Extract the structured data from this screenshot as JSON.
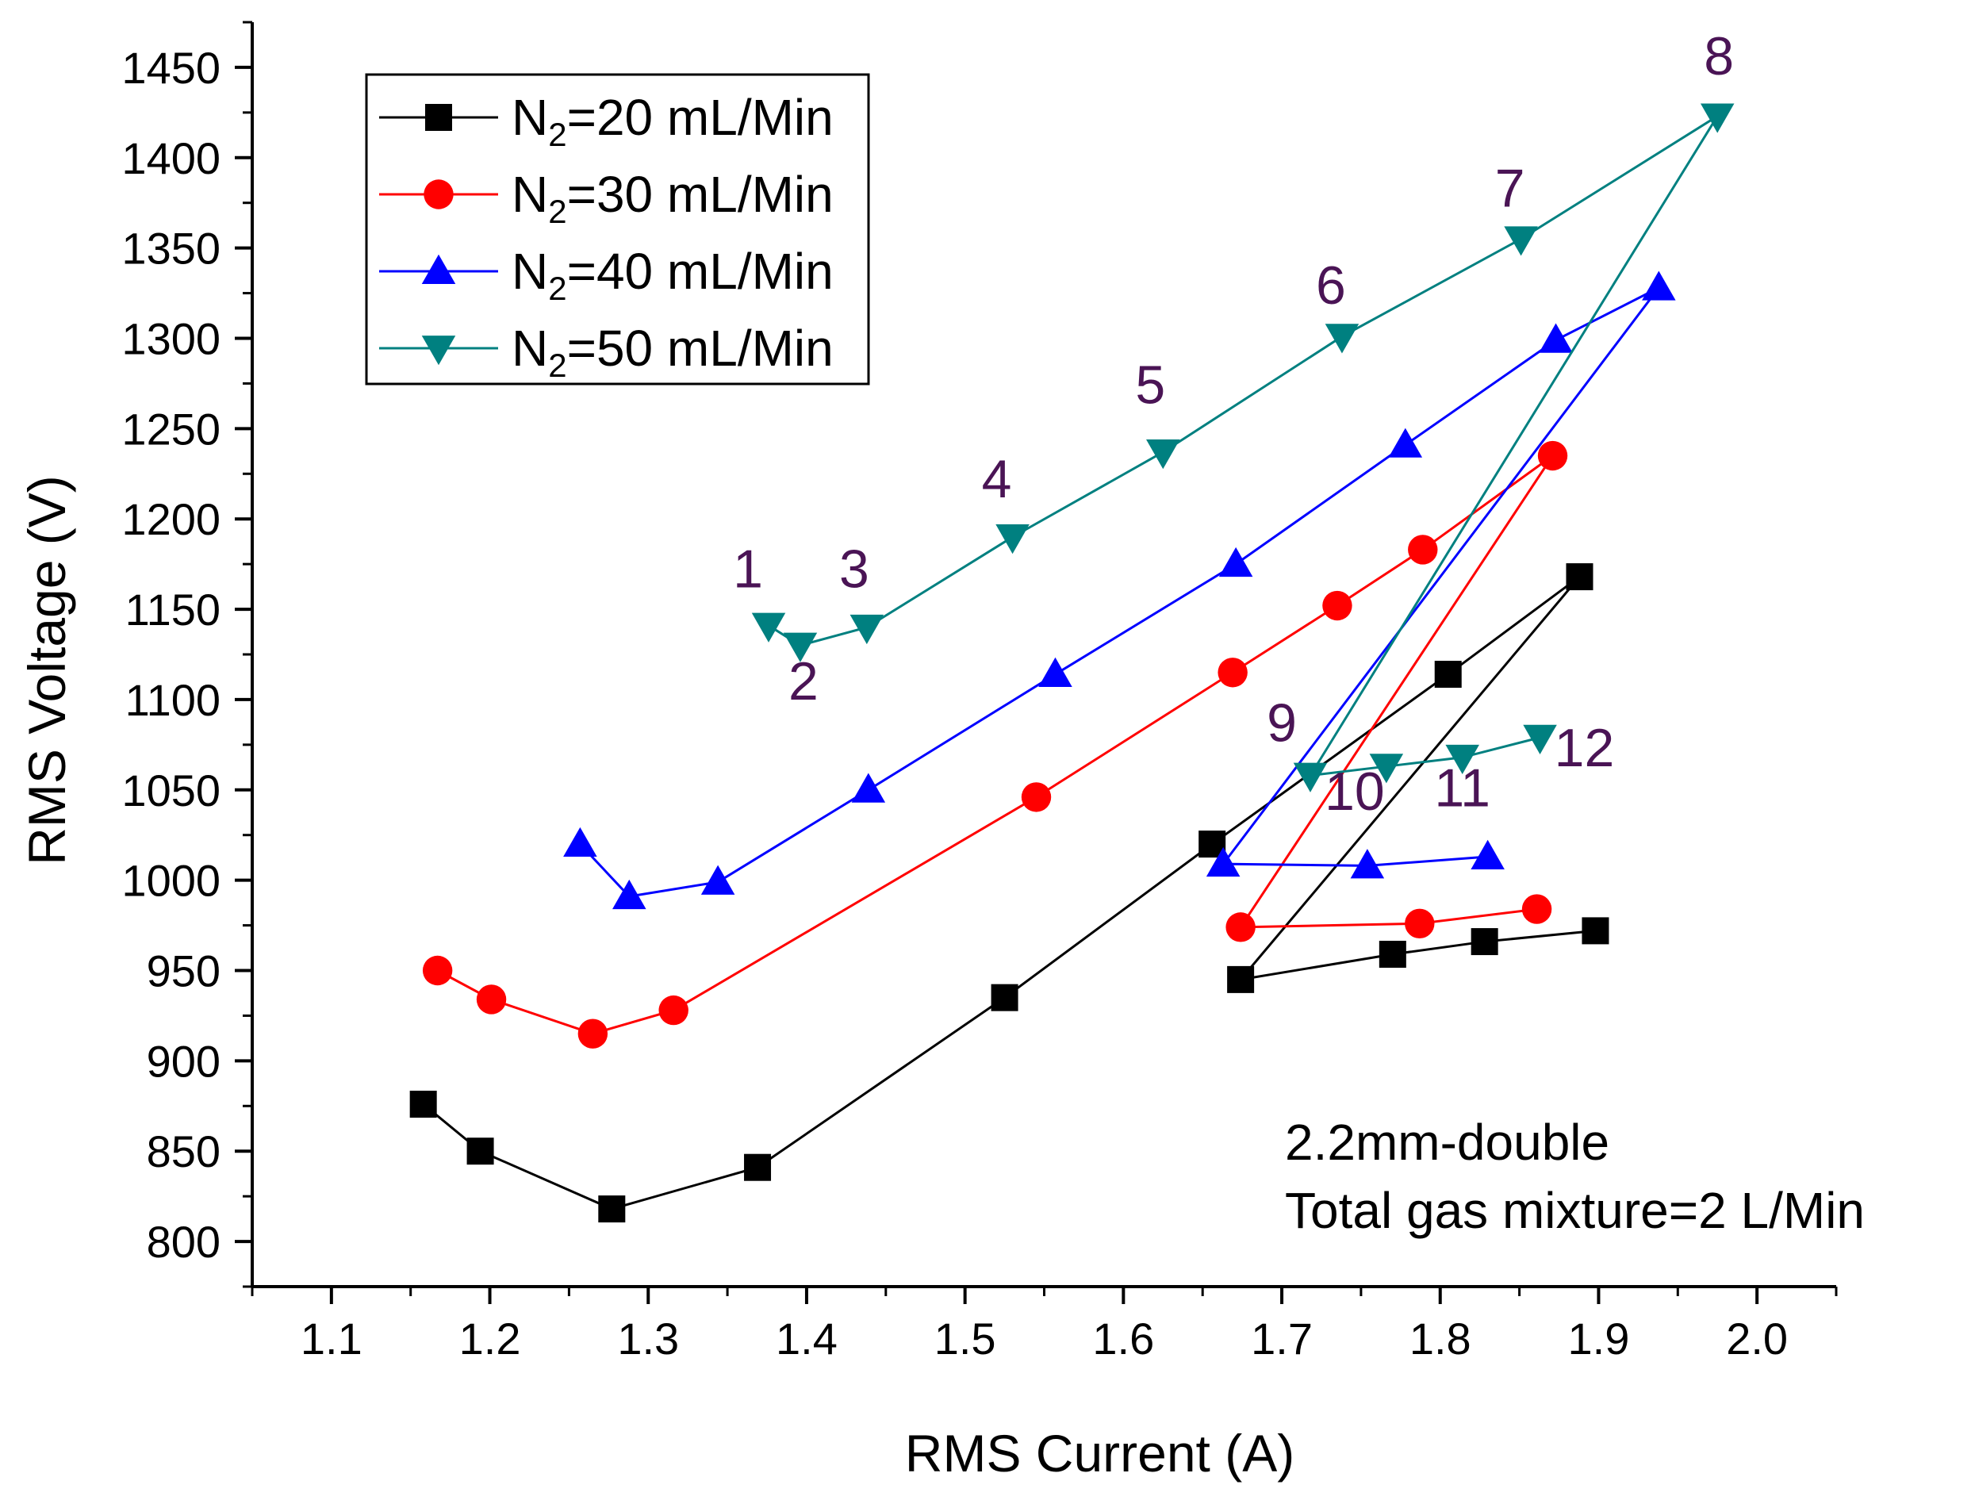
{
  "chart_data": {
    "type": "line",
    "title": "",
    "xlabel": "RMS Current (A)",
    "ylabel": "RMS Voltage (V)",
    "xlim": [
      1.05,
      2.05
    ],
    "ylim": [
      775,
      1475
    ],
    "x_ticks": [
      1.1,
      1.2,
      1.3,
      1.4,
      1.5,
      1.6,
      1.7,
      1.8,
      1.9,
      2.0
    ],
    "x_tick_labels": [
      "1.1",
      "1.2",
      "1.3",
      "1.4",
      "1.5",
      "1.6",
      "1.7",
      "1.8",
      "1.9",
      "2.0"
    ],
    "y_ticks": [
      800,
      850,
      900,
      950,
      1000,
      1050,
      1100,
      1150,
      1200,
      1250,
      1300,
      1350,
      1400,
      1450
    ],
    "y_tick_labels": [
      "800",
      "850",
      "900",
      "950",
      "1000",
      "1050",
      "1100",
      "1150",
      "1200",
      "1250",
      "1300",
      "1350",
      "1400",
      "1450"
    ],
    "legend_position": "top-left",
    "series": [
      {
        "name_main": "N",
        "name_sub": "2",
        "name_rest": "=20 mL/Min",
        "color": "#000000",
        "marker": "square",
        "x": [
          1.158,
          1.194,
          1.277,
          1.369,
          1.525,
          1.656,
          1.805,
          1.888,
          1.674,
          1.77,
          1.828,
          1.898
        ],
        "y": [
          876,
          850,
          818,
          841,
          935,
          1020,
          1114,
          1168,
          945,
          959,
          966,
          972
        ]
      },
      {
        "name_main": "N",
        "name_sub": "2",
        "name_rest": "=30 mL/Min",
        "color": "#ff0000",
        "marker": "circle",
        "x": [
          1.167,
          1.201,
          1.265,
          1.316,
          1.545,
          1.669,
          1.735,
          1.789,
          1.871,
          1.674,
          1.787,
          1.861
        ],
        "y": [
          950,
          934,
          915,
          928,
          1046,
          1115,
          1152,
          1183,
          1235,
          974,
          976,
          984
        ]
      },
      {
        "name_main": "N",
        "name_sub": "2",
        "name_rest": "=40 mL/Min",
        "color": "#0000ff",
        "marker": "triangle-up",
        "x": [
          1.257,
          1.288,
          1.344,
          1.439,
          1.557,
          1.671,
          1.778,
          1.873,
          1.938,
          1.663,
          1.754,
          1.83
        ],
        "y": [
          1020,
          991,
          999,
          1050,
          1114,
          1175,
          1241,
          1299,
          1328,
          1009,
          1008,
          1013
        ]
      },
      {
        "name_main": "N",
        "name_sub": "2",
        "name_rest": "=50 mL/Min",
        "color": "#008080",
        "marker": "triangle-down",
        "x": [
          1.376,
          1.396,
          1.438,
          1.53,
          1.625,
          1.738,
          1.851,
          1.975,
          1.718,
          1.766,
          1.814,
          1.863
        ],
        "y": [
          1141,
          1130,
          1140,
          1190,
          1237,
          1301,
          1355,
          1423,
          1058,
          1063,
          1068,
          1079
        ]
      }
    ],
    "point_labels": [
      {
        "text": "1",
        "x": 1.363,
        "y": 1162
      },
      {
        "text": "2",
        "x": 1.398,
        "y": 1100
      },
      {
        "text": "3",
        "x": 1.43,
        "y": 1162
      },
      {
        "text": "4",
        "x": 1.52,
        "y": 1212
      },
      {
        "text": "5",
        "x": 1.617,
        "y": 1264
      },
      {
        "text": "6",
        "x": 1.731,
        "y": 1319
      },
      {
        "text": "7",
        "x": 1.844,
        "y": 1373
      },
      {
        "text": "8",
        "x": 1.976,
        "y": 1446
      },
      {
        "text": "9",
        "x": 1.7,
        "y": 1077
      },
      {
        "text": "10",
        "x": 1.746,
        "y": 1039
      },
      {
        "text": "11",
        "x": 1.814,
        "y": 1041
      },
      {
        "text": "12",
        "x": 1.891,
        "y": 1063
      }
    ],
    "annotation": [
      "2.2mm-double",
      "Total gas mixture=2 L/Min"
    ],
    "grid": false
  }
}
